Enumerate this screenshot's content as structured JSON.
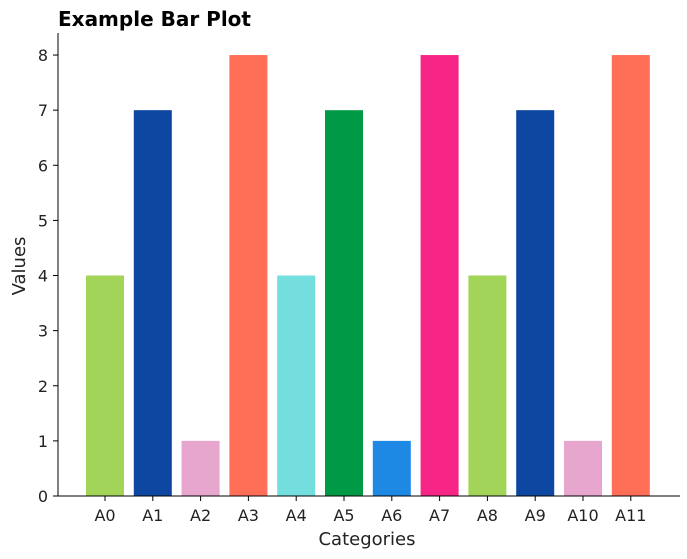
{
  "chart_data": {
    "type": "bar",
    "title": "Example Bar Plot",
    "xlabel": "Categories",
    "ylabel": "Values",
    "categories": [
      "A0",
      "A1",
      "A2",
      "A3",
      "A4",
      "A5",
      "A6",
      "A7",
      "A8",
      "A9",
      "A10",
      "A11"
    ],
    "values": [
      4,
      7,
      1,
      8,
      4,
      7,
      1,
      8,
      4,
      7,
      1,
      8
    ],
    "colors": [
      "#a2d45a",
      "#0d47a1",
      "#e6a6cd",
      "#ff6e57",
      "#74dede",
      "#009a47",
      "#1e88e5",
      "#f72585",
      "#a2d45a",
      "#0d47a1",
      "#e6a6cd",
      "#ff6e57"
    ],
    "ylim": [
      0,
      8.4
    ],
    "yticks": [
      0,
      1,
      2,
      3,
      4,
      5,
      6,
      7,
      8
    ],
    "grid": false,
    "spines": [
      "left",
      "bottom"
    ]
  }
}
